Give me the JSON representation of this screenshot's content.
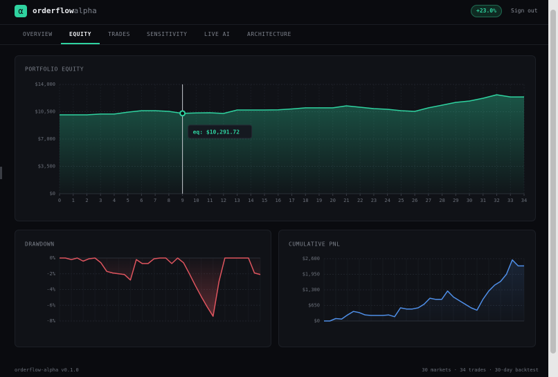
{
  "header": {
    "logo": "α",
    "brand": "orderflow",
    "brand_suffix": "alpha",
    "badge": "+23.0%",
    "sign_out": "Sign out"
  },
  "nav": {
    "tabs": [
      "OVERVIEW",
      "EQUITY",
      "TRADES",
      "SENSITIVITY",
      "LIVE AI",
      "ARCHITECTURE"
    ],
    "active": "EQUITY"
  },
  "chart_data": [
    {
      "type": "area",
      "title": "PORTFOLIO EQUITY",
      "color": "#2fd3a0",
      "grid": true,
      "x": [
        0,
        1,
        2,
        3,
        4,
        5,
        6,
        7,
        8,
        9,
        10,
        11,
        12,
        13,
        14,
        15,
        16,
        17,
        18,
        19,
        20,
        21,
        22,
        23,
        24,
        25,
        26,
        27,
        28,
        29,
        30,
        31,
        32,
        33,
        34
      ],
      "values": [
        10100,
        10100,
        10100,
        10200,
        10200,
        10450,
        10630,
        10630,
        10540,
        10291.72,
        10350,
        10370,
        10280,
        10720,
        10720,
        10720,
        10740,
        10850,
        11000,
        11000,
        11000,
        11250,
        11080,
        10900,
        10810,
        10630,
        10540,
        11000,
        11340,
        11700,
        11870,
        12230,
        12670,
        12400,
        12400
      ],
      "xlim": [
        0,
        34
      ],
      "xticks": [
        0,
        1,
        2,
        3,
        4,
        5,
        6,
        7,
        8,
        9,
        10,
        11,
        12,
        13,
        14,
        15,
        16,
        17,
        18,
        19,
        20,
        21,
        22,
        23,
        24,
        25,
        26,
        27,
        28,
        29,
        30,
        31,
        32,
        33,
        34
      ],
      "ylim": [
        0,
        14000
      ],
      "yticks": [
        {
          "value": 0,
          "label": "$0"
        },
        {
          "value": 3500,
          "label": "$3,500"
        },
        {
          "value": 7000,
          "label": "$7,000"
        },
        {
          "value": 10500,
          "label": "$10,500"
        },
        {
          "value": 14000,
          "label": "$14,000"
        }
      ],
      "tooltip": {
        "x": 9,
        "label": "eq: $10,291.72"
      }
    },
    {
      "type": "area",
      "title": "DRAWDOWN",
      "color": "#e0555f",
      "grid": true,
      "values": [
        0,
        0,
        -0.2,
        0,
        -0.4,
        -0.1,
        0,
        -0.6,
        -1.7,
        -1.9,
        -2.0,
        -2.1,
        -2.8,
        -0.2,
        -0.7,
        -0.7,
        -0.1,
        0,
        0,
        -0.7,
        0,
        -0.6,
        -2,
        -3.5,
        -4.9,
        -6.2,
        -7.4,
        -3,
        0,
        0,
        0,
        0,
        0,
        -1.9,
        -2.1
      ],
      "ylim": [
        -8,
        0
      ],
      "yticks": [
        {
          "value": 0,
          "label": "0%"
        },
        {
          "value": -2,
          "label": "-2%"
        },
        {
          "value": -4,
          "label": "-4%"
        },
        {
          "value": -6,
          "label": "-6%"
        },
        {
          "value": -8,
          "label": "-8%"
        }
      ]
    },
    {
      "type": "area",
      "title": "CUMULATIVE PNL",
      "color": "#4f8fe8",
      "grid": true,
      "values": [
        0,
        0,
        100,
        80,
        250,
        400,
        350,
        250,
        230,
        230,
        230,
        250,
        180,
        550,
        500,
        500,
        550,
        700,
        950,
        900,
        900,
        1250,
        1000,
        850,
        700,
        550,
        450,
        900,
        1250,
        1500,
        1650,
        1950,
        2550,
        2300,
        2300
      ],
      "ylim": [
        0,
        2600
      ],
      "yticks": [
        {
          "value": 0,
          "label": "$0"
        },
        {
          "value": 650,
          "label": "$650"
        },
        {
          "value": 1300,
          "label": "$1,300"
        },
        {
          "value": 1950,
          "label": "$1,950"
        },
        {
          "value": 2600,
          "label": "$2,600"
        }
      ]
    }
  ],
  "footer": {
    "version": "orderflow-alpha v0.1.0",
    "stats": "30 markets · 34 trades · 30-day backtest"
  }
}
